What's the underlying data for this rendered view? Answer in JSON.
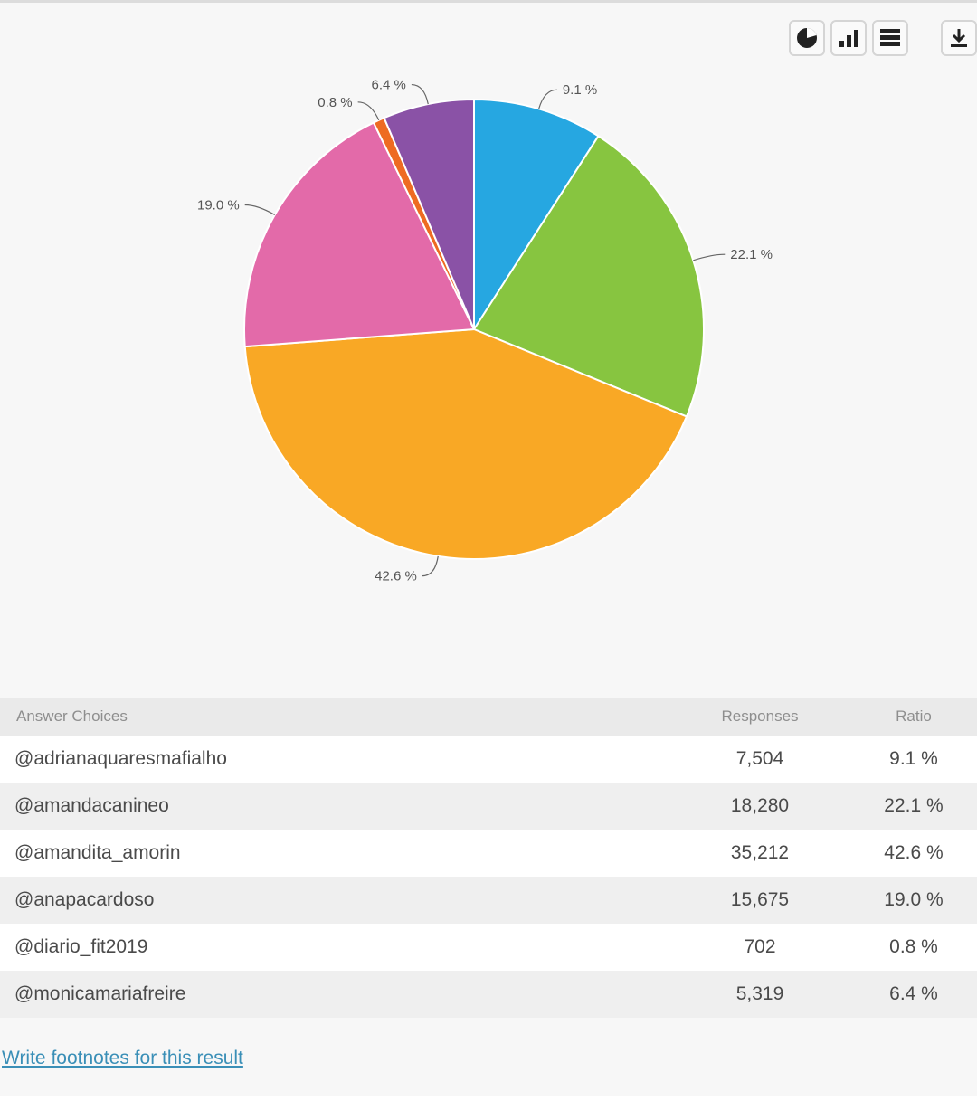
{
  "toolbar": {
    "buttons": [
      {
        "icon": "pie-chart-icon"
      },
      {
        "icon": "bar-chart-icon"
      },
      {
        "icon": "table-icon"
      },
      {
        "icon": "download-icon"
      }
    ]
  },
  "chart_data": {
    "type": "pie",
    "categories": [
      "@adrianaquaresmafialho",
      "@amandacanineo",
      "@amandita_amorin",
      "@anapacardoso",
      "@diario_fit2019",
      "@monicamariafreire"
    ],
    "values": [
      9.1,
      22.1,
      42.6,
      19.0,
      0.8,
      6.4
    ],
    "labels": [
      "9.1 %",
      "22.1 %",
      "42.6 %",
      "19.0 %",
      "0.8 %",
      "6.4 %"
    ],
    "colors": [
      "#26a7e1",
      "#87c540",
      "#f9a825",
      "#e36aa9",
      "#ee6b22",
      "#8a52a6"
    ],
    "start_angle_deg": 0,
    "direction": "clockwise"
  },
  "table": {
    "headers": {
      "choice": "Answer Choices",
      "responses": "Responses",
      "ratio": "Ratio"
    },
    "rows": [
      {
        "choice": "@adrianaquaresmafialho",
        "responses": "7,504",
        "ratio": "9.1 %"
      },
      {
        "choice": "@amandacanineo",
        "responses": "18,280",
        "ratio": "22.1 %"
      },
      {
        "choice": "@amandita_amorin",
        "responses": "35,212",
        "ratio": "42.6 %"
      },
      {
        "choice": "@anapacardoso",
        "responses": "15,675",
        "ratio": "19.0 %"
      },
      {
        "choice": "@diario_fit2019",
        "responses": "702",
        "ratio": "0.8 %"
      },
      {
        "choice": "@monicamariafreire",
        "responses": "5,319",
        "ratio": "6.4 %"
      }
    ]
  },
  "footnote_link": "Write footnotes for this result"
}
